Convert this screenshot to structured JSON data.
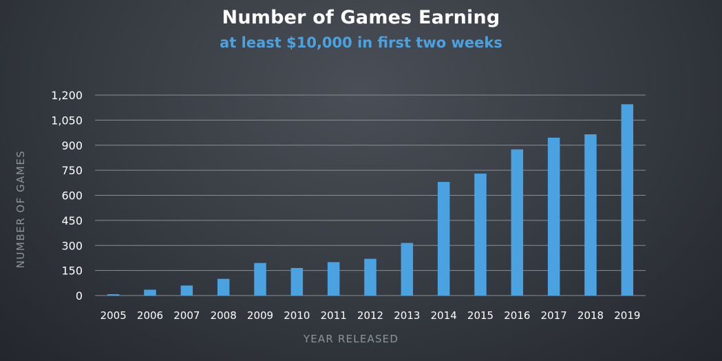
{
  "chart_data": {
    "type": "bar",
    "title": "Number of Games Earning",
    "subtitle": "at least $10,000 in first two weeks",
    "xlabel": "YEAR RELEASED",
    "ylabel": "NUMBER OF GAMES",
    "categories": [
      "2005",
      "2006",
      "2007",
      "2008",
      "2009",
      "2010",
      "2011",
      "2012",
      "2013",
      "2014",
      "2015",
      "2016",
      "2017",
      "2018",
      "2019"
    ],
    "values": [
      8,
      35,
      60,
      100,
      195,
      165,
      200,
      220,
      315,
      680,
      730,
      875,
      945,
      965,
      1145
    ],
    "ylim": [
      0,
      1200
    ],
    "yticks": [
      0,
      150,
      300,
      450,
      600,
      750,
      900,
      1050,
      1200
    ],
    "ytick_labels": [
      "0",
      "150",
      "300",
      "450",
      "600",
      "750",
      "900",
      "1,050",
      "1,200"
    ],
    "grid": "horizontal",
    "colors": {
      "bar": "#4aa3e0",
      "title": "#ffffff",
      "subtitle": "#4aa3e0",
      "grid": "#8a8e95",
      "tick_label": "#ffffff",
      "axis_label": "#8e949c"
    }
  }
}
